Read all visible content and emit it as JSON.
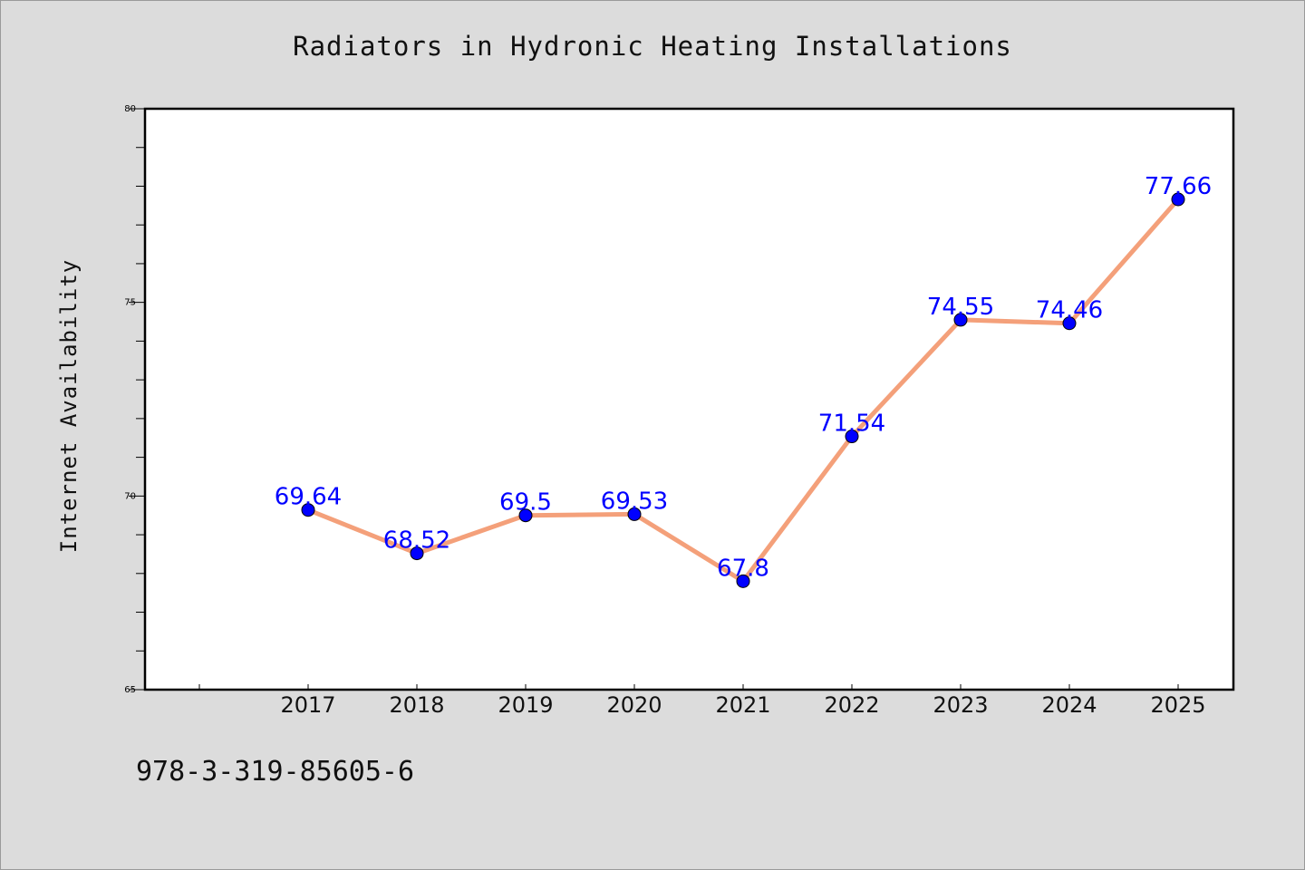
{
  "chart_data": {
    "type": "line",
    "title": "Radiators in Hydronic Heating Installations",
    "xlabel": "",
    "ylabel": "Internet Availability",
    "categories": [
      "2017",
      "2018",
      "2019",
      "2020",
      "2021",
      "2022",
      "2023",
      "2024",
      "2025"
    ],
    "series": [
      {
        "values": [
          69.64,
          68.52,
          69.5,
          69.53,
          67.8,
          71.54,
          74.55,
          74.46,
          77.66
        ],
        "labels": [
          "69.64",
          "68.52",
          "69.5",
          "69.53",
          "67.8",
          "71.54",
          "74.55",
          "74.46",
          "77.66"
        ],
        "line_color": "#f4a07a",
        "marker_color": "#0000ff",
        "label_color": "#0000ff"
      }
    ],
    "ylim": [
      65,
      80
    ],
    "yticks": [
      65,
      70,
      75,
      80
    ],
    "ytick_labels": [
      "65",
      "70",
      "75",
      "80"
    ],
    "grid": false,
    "legend": "none"
  },
  "footer": {
    "isbn": "978-3-319-85605-6"
  }
}
